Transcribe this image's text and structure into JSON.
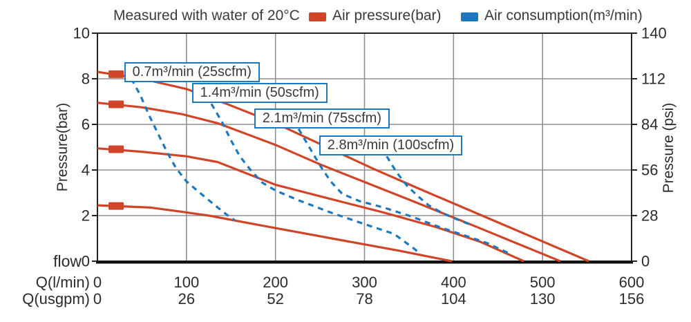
{
  "title": "Measured with water of 20°C",
  "legend": [
    {
      "label": "Air pressure(bar)",
      "color": "#d04527"
    },
    {
      "label": "Air consumption(m³/min)",
      "color": "#1d78be"
    }
  ],
  "chart_data": {
    "type": "line",
    "title": "Measured with water of 20°C",
    "grid": true,
    "x_axis": {
      "label": "flow",
      "xlim": [
        0,
        600
      ],
      "rows": [
        {
          "label": "Q(l/min)",
          "ticks": [
            0,
            100,
            200,
            300,
            400,
            500,
            600
          ]
        },
        {
          "label": "Q(usgpm)",
          "ticks": [
            0,
            26,
            52,
            78,
            104,
            130,
            156
          ]
        }
      ]
    },
    "y_axis_left": {
      "label": "Pressure(bar)",
      "ylim": [
        0,
        10
      ],
      "ticks": [
        0,
        2,
        4,
        6,
        8,
        10
      ]
    },
    "y_axis_right": {
      "label": "Pressure (psi)",
      "ylim": [
        0,
        140
      ],
      "ticks": [
        0,
        28,
        56,
        84,
        112,
        140
      ]
    },
    "series": [
      {
        "name": "air-pressure-8.3bar",
        "group": "Air pressure(bar)",
        "color": "#d04527",
        "style": "solid",
        "marker_point": [
          21,
          8.2
        ],
        "points": [
          [
            0,
            8.3
          ],
          [
            50,
            8.0
          ],
          [
            100,
            7.55
          ],
          [
            145,
            6.9
          ],
          [
            200,
            6.05
          ],
          [
            255,
            5.05
          ],
          [
            310,
            4.05
          ],
          [
            360,
            3.2
          ],
          [
            420,
            2.2
          ],
          [
            480,
            1.2
          ],
          [
            552,
            0
          ]
        ]
      },
      {
        "name": "air-pressure-7bar",
        "group": "Air pressure(bar)",
        "color": "#d04527",
        "style": "solid",
        "marker_point": [
          21,
          6.88
        ],
        "points": [
          [
            0,
            6.95
          ],
          [
            50,
            6.75
          ],
          [
            95,
            6.45
          ],
          [
            135,
            6.05
          ],
          [
            200,
            5.1
          ],
          [
            250,
            4.25
          ],
          [
            295,
            3.55
          ],
          [
            350,
            2.7
          ],
          [
            420,
            1.6
          ],
          [
            470,
            0.8
          ],
          [
            520,
            0
          ]
        ]
      },
      {
        "name": "air-pressure-5bar",
        "group": "Air pressure(bar)",
        "color": "#d04527",
        "style": "solid",
        "marker_point": [
          21,
          4.91
        ],
        "points": [
          [
            0,
            4.95
          ],
          [
            50,
            4.8
          ],
          [
            100,
            4.6
          ],
          [
            135,
            4.35
          ],
          [
            200,
            3.35
          ],
          [
            260,
            2.75
          ],
          [
            320,
            2.15
          ],
          [
            380,
            1.5
          ],
          [
            430,
            0.85
          ],
          [
            479,
            0
          ]
        ]
      },
      {
        "name": "air-pressure-2.5bar",
        "group": "Air pressure(bar)",
        "color": "#d04527",
        "style": "solid",
        "marker_point": [
          21,
          2.42
        ],
        "points": [
          [
            0,
            2.45
          ],
          [
            60,
            2.35
          ],
          [
            98,
            2.15
          ],
          [
            125,
            2.0
          ],
          [
            200,
            1.45
          ],
          [
            280,
            0.88
          ],
          [
            340,
            0.45
          ],
          [
            398,
            0
          ]
        ]
      },
      {
        "name": "air-consumption-0.7",
        "group": "Air consumption(m³/min)",
        "color": "#1d78be",
        "style": "dashed",
        "points": [
          [
            38,
            8.0
          ],
          [
            48,
            7.3
          ],
          [
            58,
            6.4
          ],
          [
            68,
            5.6
          ],
          [
            78,
            4.8
          ],
          [
            88,
            4.1
          ],
          [
            100,
            3.5
          ],
          [
            115,
            3.0
          ],
          [
            132,
            2.45
          ],
          [
            145,
            2.05
          ],
          [
            154,
            1.8
          ]
        ]
      },
      {
        "name": "air-consumption-1.4",
        "group": "Air consumption(m³/min)",
        "color": "#1d78be",
        "style": "dashed",
        "points": [
          [
            128,
            6.9
          ],
          [
            140,
            6.1
          ],
          [
            150,
            5.3
          ],
          [
            160,
            4.6
          ],
          [
            172,
            4.0
          ],
          [
            185,
            3.45
          ],
          [
            200,
            3.1
          ],
          [
            226,
            2.67
          ],
          [
            263,
            2.12
          ],
          [
            302,
            1.6
          ],
          [
            333,
            1.2
          ],
          [
            354,
            0.6
          ],
          [
            362,
            0.35
          ]
        ]
      },
      {
        "name": "air-consumption-2.1",
        "group": "Air consumption(m³/min)",
        "color": "#1d78be",
        "style": "dashed",
        "points": [
          [
            226,
            5.8
          ],
          [
            238,
            5.0
          ],
          [
            250,
            4.2
          ],
          [
            262,
            3.5
          ],
          [
            275,
            2.95
          ],
          [
            294,
            2.64
          ],
          [
            321,
            2.36
          ],
          [
            352,
            1.97
          ],
          [
            384,
            1.5
          ],
          [
            411,
            1.15
          ],
          [
            438,
            0.79
          ],
          [
            463,
            0.33
          ]
        ]
      },
      {
        "name": "air-consumption-2.8",
        "group": "Air consumption(m³/min)",
        "color": "#1d78be",
        "style": "dashed",
        "points": [
          [
            325,
            4.6
          ],
          [
            336,
            3.9
          ],
          [
            348,
            3.3
          ],
          [
            360,
            2.85
          ],
          [
            372,
            2.45
          ],
          [
            388,
            2.1
          ],
          [
            403,
            1.85
          ],
          [
            419,
            1.6
          ]
        ]
      }
    ],
    "annotations": [
      {
        "label": "0.7m³/min (25scfm)",
        "anchor_flow": 30,
        "anchor_bar": 8.73
      },
      {
        "label": "1.4m³/min (50scfm)",
        "anchor_flow": 106,
        "anchor_bar": 7.82
      },
      {
        "label": "2.1m³/min (75scfm)",
        "anchor_flow": 176,
        "anchor_bar": 6.7
      },
      {
        "label": "2.8m³/min (100scfm)",
        "anchor_flow": 249,
        "anchor_bar": 5.52
      }
    ]
  }
}
